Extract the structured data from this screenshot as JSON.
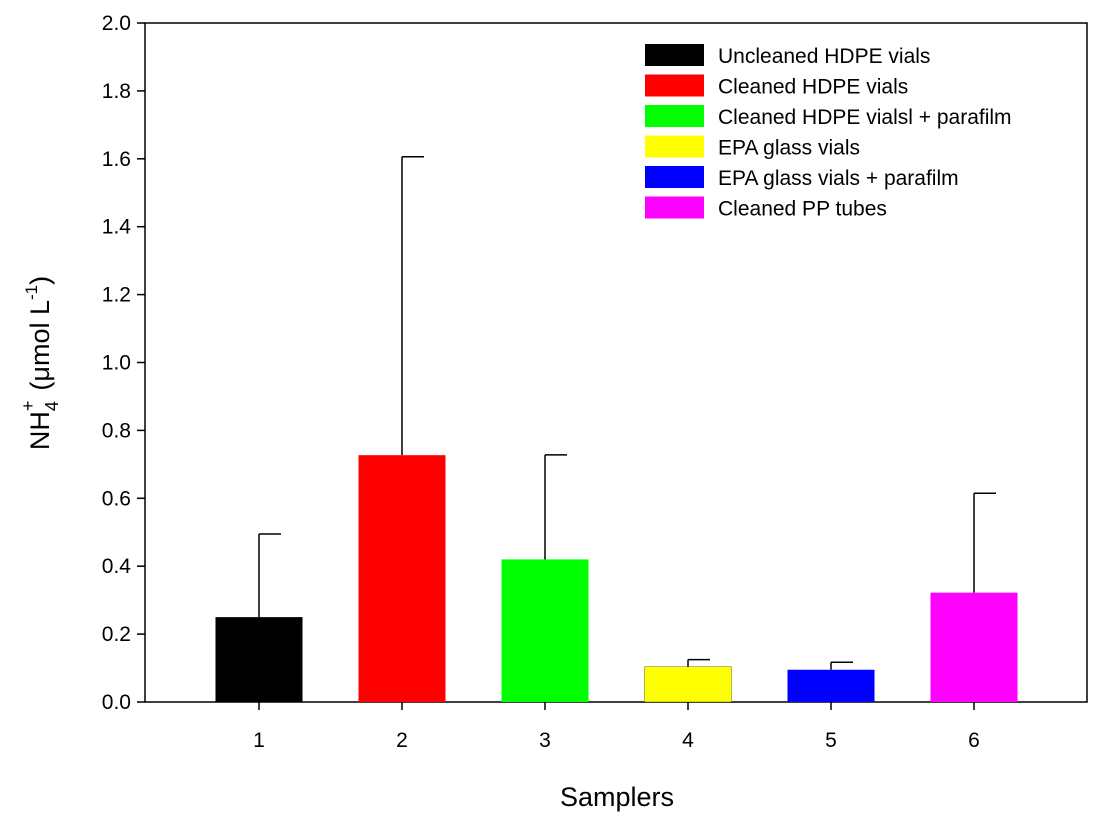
{
  "chart_data": {
    "type": "bar",
    "categories": [
      "1",
      "2",
      "3",
      "4",
      "5",
      "6"
    ],
    "values": [
      0.25,
      0.727,
      0.42,
      0.104,
      0.095,
      0.322
    ],
    "error_upper": [
      0.495,
      1.606,
      0.728,
      0.125,
      0.117,
      0.615
    ],
    "colors": [
      "#000000",
      "#ff0000",
      "#00ff00",
      "#ffff00",
      "#0000ff",
      "#ff00ff"
    ],
    "legend": [
      " Uncleaned HDPE vials",
      "Cleaned HDPE vials",
      "Cleaned HDPE vialsl + parafilm",
      "EPA glass vials",
      "EPA glass vials + parafilm",
      "Cleaned PP tubes"
    ],
    "legend_position": "top-right",
    "xlabel": "Samplers",
    "ylabel": {
      "main": "NH",
      "subscript": "4",
      "superscript": "+",
      "unit_prefix": "(",
      "unit_mu": "μ",
      "unit_text": "mol L",
      "unit_exponent": "-1",
      "unit_suffix": ")"
    },
    "ylim": [
      0,
      2.0
    ],
    "yticks": [
      "0.0",
      "0.2",
      "0.4",
      "0.6",
      "0.8",
      "1.0",
      "1.2",
      "1.4",
      "1.6",
      "1.8",
      "2.0"
    ],
    "grid": false
  }
}
